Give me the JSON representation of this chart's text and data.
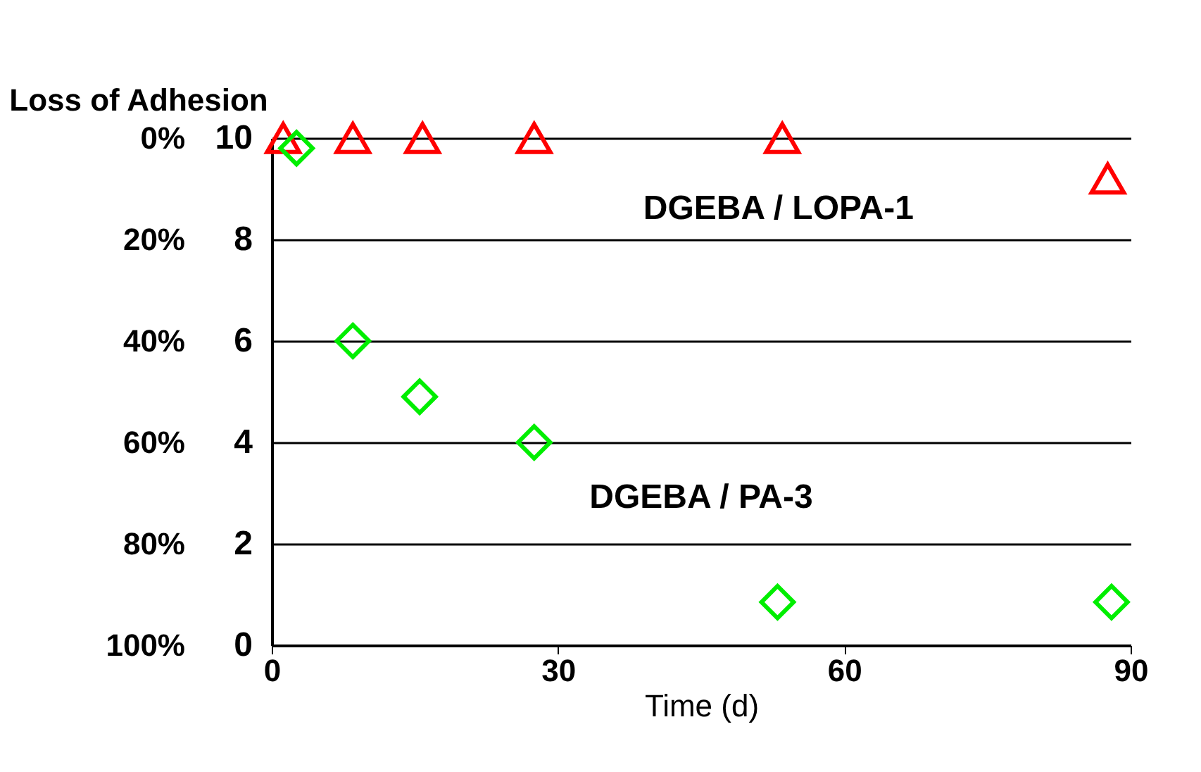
{
  "chart_data": {
    "type": "scatter",
    "xlabel": "Time (d)",
    "ylabel": null,
    "y2label": "Loss of Adhesion",
    "xlim": [
      0,
      90
    ],
    "xticks": [
      0,
      30,
      60,
      90
    ],
    "ylim": [
      0,
      10
    ],
    "yticks": [
      0,
      2,
      4,
      6,
      8,
      10
    ],
    "y2lim": [
      100,
      0
    ],
    "y2ticks": [
      {
        "value": 0,
        "label": "0%"
      },
      {
        "value": 20,
        "label": "20%"
      },
      {
        "value": 40,
        "label": "40%"
      },
      {
        "value": 60,
        "label": "60%"
      },
      {
        "value": 80,
        "label": "80%"
      },
      {
        "value": 100,
        "label": "100%"
      }
    ],
    "grid": "y",
    "series": [
      {
        "name": "DGEBA / LOPA-1",
        "color": "#ff0000",
        "marker": "triangle",
        "x": [
          1.2,
          8.5,
          15.8,
          27.5,
          53.5,
          87.6
        ],
        "values": [
          10,
          10,
          10,
          10,
          10,
          9.2
        ]
      },
      {
        "name": "DGEBA / PA-3",
        "color": "#00ee00",
        "marker": "diamond",
        "x": [
          2.6,
          8.5,
          15.5,
          27.5,
          53,
          88
        ],
        "values": [
          9.8,
          6.0,
          4.9,
          4.0,
          0.85,
          0.85
        ]
      }
    ]
  }
}
